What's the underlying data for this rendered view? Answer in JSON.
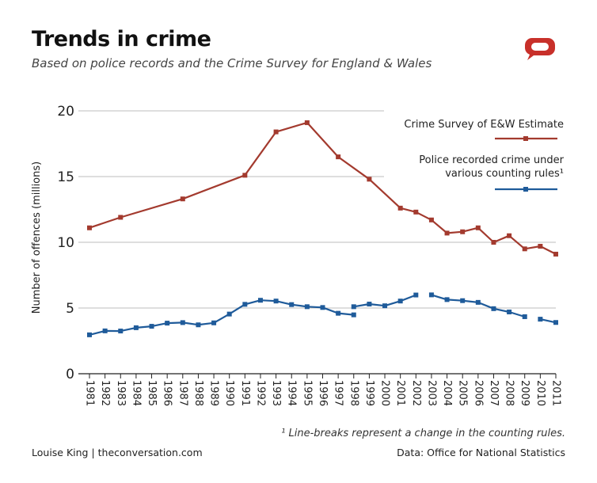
{
  "header": {
    "title": "Trends in crime",
    "subtitle": "Based on police records and the Crime Survey for England & Wales"
  },
  "footer": {
    "footnote": "¹ Line-breaks represent a change in the counting rules.",
    "credit": "Louise King | theconversation.com",
    "source": "Data: Office for National Statistics"
  },
  "icons": {
    "logo": "speech-bubble-icon"
  },
  "chart_data": {
    "type": "line",
    "title": "Trends in crime",
    "subtitle": "Based on police records and the Crime Survey for England & Wales",
    "ylabel": "Number of offences (millions)",
    "xlabel": "",
    "ylim": [
      0,
      20
    ],
    "yticks": [
      0,
      5,
      10,
      15,
      20
    ],
    "xlim": [
      1981,
      2011
    ],
    "xticks": [
      "1981",
      "1982",
      "1983",
      "1984",
      "1985",
      "1986",
      "1987",
      "1988",
      "1989",
      "1990",
      "1991",
      "1992",
      "1993",
      "1994",
      "1995",
      "1996",
      "1997",
      "1998",
      "1999",
      "2000",
      "2001",
      "2002",
      "2003",
      "2004",
      "2005",
      "2006",
      "2007",
      "2008",
      "2009",
      "2010",
      "2011"
    ],
    "grid": "horizontal",
    "legend_position": "top-right",
    "series": [
      {
        "name": "Crime Survey of E&W Estimate",
        "color": "#a33a2e",
        "segments": [
          [
            {
              "x": 1981,
              "y": 11.1
            },
            {
              "x": 1983,
              "y": 11.9
            },
            {
              "x": 1987,
              "y": 13.3
            },
            {
              "x": 1991,
              "y": 15.1
            },
            {
              "x": 1993,
              "y": 18.4
            },
            {
              "x": 1995,
              "y": 19.1
            },
            {
              "x": 1997,
              "y": 16.5
            },
            {
              "x": 1999,
              "y": 14.8
            },
            {
              "x": 2001,
              "y": 12.6
            },
            {
              "x": 2002,
              "y": 12.3
            },
            {
              "x": 2003,
              "y": 11.7
            },
            {
              "x": 2004,
              "y": 10.7
            },
            {
              "x": 2005,
              "y": 10.8
            },
            {
              "x": 2006,
              "y": 11.1
            },
            {
              "x": 2007,
              "y": 10.0
            },
            {
              "x": 2008,
              "y": 10.5
            },
            {
              "x": 2009,
              "y": 9.5
            },
            {
              "x": 2010,
              "y": 9.7
            },
            {
              "x": 2011,
              "y": 9.1
            }
          ]
        ]
      },
      {
        "name": "Police recorded crime under various counting rules¹",
        "color": "#1f5b9a",
        "segments": [
          [
            {
              "x": 1981,
              "y": 2.96
            },
            {
              "x": 1982,
              "y": 3.26
            },
            {
              "x": 1983,
              "y": 3.25
            },
            {
              "x": 1984,
              "y": 3.5
            },
            {
              "x": 1985,
              "y": 3.61
            },
            {
              "x": 1986,
              "y": 3.85
            },
            {
              "x": 1987,
              "y": 3.89
            },
            {
              "x": 1988,
              "y": 3.72
            },
            {
              "x": 1989,
              "y": 3.87
            },
            {
              "x": 1990,
              "y": 4.54
            },
            {
              "x": 1991,
              "y": 5.28
            },
            {
              "x": 1992,
              "y": 5.59
            },
            {
              "x": 1993,
              "y": 5.53
            },
            {
              "x": 1994,
              "y": 5.26
            },
            {
              "x": 1995,
              "y": 5.1
            },
            {
              "x": 1996,
              "y": 5.04
            },
            {
              "x": 1997,
              "y": 4.6
            },
            {
              "x": 1998,
              "y": 4.48
            }
          ],
          [
            {
              "x": 1998,
              "y": 5.1
            },
            {
              "x": 1999,
              "y": 5.3
            },
            {
              "x": 2000,
              "y": 5.17
            },
            {
              "x": 2001,
              "y": 5.53
            },
            {
              "x": 2002,
              "y": 5.99
            }
          ],
          [
            {
              "x": 2003,
              "y": 6.0
            },
            {
              "x": 2004,
              "y": 5.64
            },
            {
              "x": 2005,
              "y": 5.56
            },
            {
              "x": 2006,
              "y": 5.43
            },
            {
              "x": 2007,
              "y": 4.95
            },
            {
              "x": 2008,
              "y": 4.7
            },
            {
              "x": 2009,
              "y": 4.34
            }
          ],
          [
            {
              "x": 2010,
              "y": 4.15
            },
            {
              "x": 2011,
              "y": 3.9
            }
          ]
        ]
      }
    ]
  }
}
